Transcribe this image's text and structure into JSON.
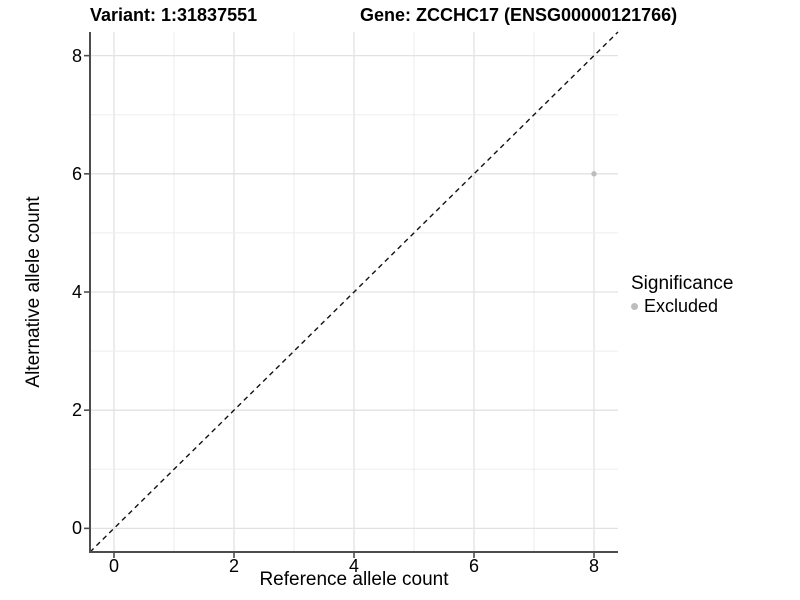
{
  "titles": {
    "variant": "Variant: 1:31837551",
    "gene": "Gene: ZCCHC17 (ENSG00000121766)"
  },
  "chart_data": {
    "type": "scatter",
    "xlabel": "Reference allele count",
    "ylabel": "Alternative allele count",
    "xlim": [
      -0.4,
      8.4
    ],
    "ylim": [
      -0.4,
      8.4
    ],
    "x_ticks": [
      0,
      2,
      4,
      6,
      8
    ],
    "y_ticks": [
      0,
      2,
      4,
      6,
      8
    ],
    "minor_grid_interval": 1,
    "grid": true,
    "points": [
      {
        "x": 8,
        "y": 6,
        "series": "Excluded"
      }
    ],
    "reference_line": {
      "type": "identity",
      "slope": 1,
      "intercept": 0,
      "style": "dashed"
    },
    "legend": {
      "title": "Significance",
      "position": "right",
      "items": [
        {
          "label": "Excluded",
          "color": "#bdbdbd"
        }
      ]
    },
    "colors": {
      "point": "#bdbdbd",
      "grid_major": "#e2e2e2",
      "grid_minor": "#ededed",
      "axis_line": "#4d4d4d",
      "reference_line": "#111111",
      "background": "#ffffff"
    }
  }
}
